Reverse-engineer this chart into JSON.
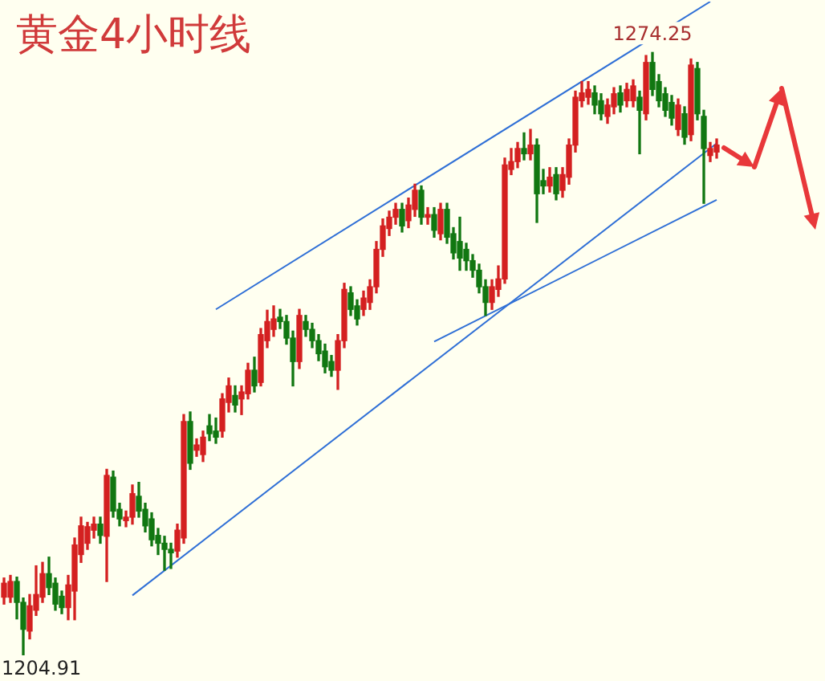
{
  "chart_data": {
    "type": "candlestick",
    "title": "黄金4小时线",
    "annotations": [
      {
        "text": "1274.25",
        "y": 1274.25
      },
      "1204.91"
    ],
    "categories": [
      null,
      null,
      null,
      null,
      null,
      null,
      null,
      null,
      null,
      null,
      null,
      null,
      null,
      null,
      null,
      null,
      null,
      null,
      null,
      null,
      null,
      null,
      null,
      null,
      null,
      null,
      null,
      null,
      null,
      null,
      null,
      null,
      null,
      null,
      null,
      null,
      null,
      null,
      null,
      null,
      null,
      null,
      null,
      null,
      null,
      null,
      null,
      null,
      null,
      null,
      null,
      null,
      null,
      null,
      null,
      null,
      null,
      null,
      null,
      null,
      null,
      null,
      null,
      null,
      null,
      null,
      null,
      null,
      null,
      null,
      null,
      null,
      null,
      null,
      null,
      null,
      null,
      null,
      null,
      null,
      null,
      null,
      null,
      null,
      null,
      null,
      null,
      null,
      null,
      null,
      null,
      null,
      null,
      null,
      null,
      null,
      null,
      null,
      null,
      null,
      null,
      null,
      null,
      null,
      null,
      null,
      null,
      null,
      null,
      null,
      null,
      null
    ],
    "ohlc": [
      [
        1211.6,
        1213.8,
        1210.8,
        1213.2
      ],
      [
        1211.6,
        1214.1,
        1211.0,
        1213.4
      ],
      [
        1213.4,
        1213.9,
        1209.1,
        1211.0
      ],
      [
        1211.0,
        1211.5,
        1204.91,
        1207.9
      ],
      [
        1207.7,
        1211.9,
        1206.8,
        1210.6
      ],
      [
        1210.1,
        1215.2,
        1209.5,
        1211.9
      ],
      [
        1211.6,
        1215.6,
        1211.0,
        1214.3
      ],
      [
        1214.3,
        1216.2,
        1211.9,
        1212.7
      ],
      [
        1213.2,
        1213.8,
        1210.1,
        1210.8
      ],
      [
        1211.7,
        1212.3,
        1209.7,
        1210.4
      ],
      [
        1210.4,
        1214.1,
        1209.0,
        1213.0
      ],
      [
        1212.3,
        1218.4,
        1209.0,
        1217.6
      ],
      [
        1216.5,
        1220.8,
        1215.6,
        1219.8
      ],
      [
        1217.8,
        1220.2,
        1217.1,
        1219.7
      ],
      [
        1219.3,
        1220.8,
        1218.4,
        1220.0
      ],
      [
        1220.0,
        1220.8,
        1217.8,
        1218.7
      ],
      [
        1218.6,
        1226.3,
        1213.4,
        1225.6
      ],
      [
        1225.4,
        1226.1,
        1220.8,
        1221.5
      ],
      [
        1221.7,
        1222.4,
        1219.8,
        1220.6
      ],
      [
        1220.4,
        1221.5,
        1219.7,
        1220.8
      ],
      [
        1220.8,
        1224.5,
        1220.0,
        1223.5
      ],
      [
        1223.2,
        1224.8,
        1220.8,
        1221.5
      ],
      [
        1221.7,
        1222.4,
        1219.1,
        1219.8
      ],
      [
        1220.6,
        1221.3,
        1217.5,
        1218.2
      ],
      [
        1218.7,
        1219.5,
        1216.5,
        1217.8
      ],
      [
        1217.8,
        1218.6,
        1214.7,
        1217.1
      ],
      [
        1217.1,
        1217.8,
        1214.9,
        1216.7
      ],
      [
        1216.9,
        1220.0,
        1216.2,
        1219.3
      ],
      [
        1218.4,
        1232.6,
        1217.8,
        1231.8
      ],
      [
        1231.8,
        1232.9,
        1226.3,
        1227.0
      ],
      [
        1228.5,
        1229.8,
        1227.8,
        1229.1
      ],
      [
        1228.0,
        1230.7,
        1227.2,
        1230.0
      ],
      [
        1231.3,
        1232.6,
        1229.6,
        1230.4
      ],
      [
        1230.7,
        1232.2,
        1229.3,
        1230.0
      ],
      [
        1230.7,
        1235.0,
        1230.0,
        1234.4
      ],
      [
        1234.0,
        1236.8,
        1232.9,
        1235.9
      ],
      [
        1234.8,
        1235.9,
        1232.9,
        1233.7
      ],
      [
        1234.4,
        1235.9,
        1232.6,
        1235.2
      ],
      [
        1235.0,
        1238.5,
        1234.4,
        1237.7
      ],
      [
        1237.7,
        1239.2,
        1235.2,
        1235.9
      ],
      [
        1236.3,
        1242.5,
        1235.9,
        1241.8
      ],
      [
        1241.1,
        1244.6,
        1240.3,
        1243.3
      ],
      [
        1242.4,
        1245.1,
        1241.6,
        1243.6
      ],
      [
        1243.8,
        1244.7,
        1242.5,
        1243.3
      ],
      [
        1243.3,
        1244.0,
        1240.7,
        1241.4
      ],
      [
        1241.4,
        1242.2,
        1235.9,
        1238.7
      ],
      [
        1238.7,
        1244.7,
        1237.9,
        1244.0
      ],
      [
        1243.3,
        1244.0,
        1241.6,
        1242.4
      ],
      [
        1242.4,
        1243.1,
        1240.3,
        1241.1
      ],
      [
        1241.1,
        1241.8,
        1238.8,
        1239.6
      ],
      [
        1239.9,
        1240.7,
        1237.4,
        1238.1
      ],
      [
        1238.7,
        1239.4,
        1237.0,
        1237.7
      ],
      [
        1237.7,
        1241.8,
        1235.5,
        1241.1
      ],
      [
        1241.1,
        1247.7,
        1240.3,
        1247.0
      ],
      [
        1246.6,
        1247.3,
        1244.0,
        1244.7
      ],
      [
        1245.1,
        1245.8,
        1242.9,
        1243.6
      ],
      [
        1244.7,
        1246.8,
        1244.0,
        1246.0
      ],
      [
        1245.5,
        1248.1,
        1244.7,
        1247.3
      ],
      [
        1247.3,
        1252.5,
        1246.6,
        1251.6
      ],
      [
        1251.6,
        1255.1,
        1250.8,
        1254.3
      ],
      [
        1254.0,
        1256.0,
        1253.2,
        1255.3
      ],
      [
        1255.3,
        1256.9,
        1254.5,
        1256.2
      ],
      [
        1256.2,
        1256.9,
        1253.6,
        1254.3
      ],
      [
        1254.9,
        1257.5,
        1254.1,
        1256.7
      ],
      [
        1256.2,
        1259.1,
        1255.4,
        1258.4
      ],
      [
        1258.4,
        1258.9,
        1254.5,
        1255.3
      ],
      [
        1255.3,
        1256.4,
        1254.5,
        1255.6
      ],
      [
        1255.6,
        1256.4,
        1253.0,
        1253.8
      ],
      [
        1253.4,
        1256.9,
        1252.7,
        1256.2
      ],
      [
        1256.2,
        1256.9,
        1252.3,
        1253.0
      ],
      [
        1253.4,
        1254.1,
        1250.5,
        1251.2
      ],
      [
        1252.5,
        1255.3,
        1249.2,
        1250.6
      ],
      [
        1251.6,
        1252.3,
        1249.2,
        1250.3
      ],
      [
        1250.3,
        1251.0,
        1248.4,
        1249.2
      ],
      [
        1249.2,
        1249.9,
        1246.6,
        1247.3
      ],
      [
        1247.3,
        1248.1,
        1244.0,
        1245.5
      ],
      [
        1245.5,
        1248.1,
        1244.7,
        1247.3
      ],
      [
        1247.0,
        1249.7,
        1246.2,
        1248.2
      ],
      [
        1248.2,
        1262.1,
        1247.7,
        1261.3
      ],
      [
        1260.8,
        1263.2,
        1260.2,
        1261.7
      ],
      [
        1261.7,
        1263.9,
        1261.0,
        1263.2
      ],
      [
        1263.2,
        1265.0,
        1261.9,
        1262.6
      ],
      [
        1262.6,
        1265.4,
        1261.9,
        1263.6
      ],
      [
        1263.6,
        1264.3,
        1254.7,
        1258.0
      ],
      [
        1259.5,
        1260.8,
        1258.0,
        1258.9
      ],
      [
        1258.9,
        1261.0,
        1258.2,
        1259.9
      ],
      [
        1260.2,
        1261.0,
        1257.3,
        1258.0
      ],
      [
        1258.4,
        1261.0,
        1257.6,
        1260.2
      ],
      [
        1259.9,
        1264.3,
        1259.1,
        1263.6
      ],
      [
        1263.6,
        1269.8,
        1262.8,
        1269.1
      ],
      [
        1268.7,
        1270.9,
        1268.0,
        1269.6
      ],
      [
        1269.1,
        1270.9,
        1268.3,
        1270.0
      ],
      [
        1269.6,
        1270.4,
        1267.2,
        1268.2
      ],
      [
        1268.7,
        1269.5,
        1266.5,
        1267.2
      ],
      [
        1266.9,
        1268.9,
        1266.1,
        1268.2
      ],
      [
        1268.0,
        1270.2,
        1267.2,
        1269.5
      ],
      [
        1269.6,
        1270.4,
        1267.4,
        1268.2
      ],
      [
        1268.7,
        1270.7,
        1268.0,
        1270.0
      ],
      [
        1268.7,
        1271.1,
        1268.0,
        1270.4
      ],
      [
        1269.1,
        1269.8,
        1262.6,
        1267.6
      ],
      [
        1267.2,
        1273.9,
        1266.5,
        1273.1
      ],
      [
        1273.1,
        1274.25,
        1269.3,
        1270.0
      ],
      [
        1270.9,
        1271.7,
        1268.0,
        1268.7
      ],
      [
        1269.5,
        1270.2,
        1266.9,
        1267.6
      ],
      [
        1268.5,
        1269.3,
        1265.9,
        1266.7
      ],
      [
        1265.4,
        1268.9,
        1264.7,
        1268.2
      ],
      [
        1267.2,
        1268.0,
        1263.7,
        1264.5
      ],
      [
        1264.8,
        1273.5,
        1264.1,
        1272.8
      ],
      [
        1272.4,
        1273.1,
        1266.5,
        1267.2
      ],
      [
        1266.9,
        1267.6,
        1256.9,
        1263.2
      ],
      [
        1262.4,
        1263.9,
        1261.7,
        1263.2
      ],
      [
        1262.8,
        1264.3,
        1262.1,
        1263.6
      ]
    ],
    "colors": [
      "#d42020",
      "#d42020",
      "#117711",
      "#117711",
      "#d42020",
      "#d42020",
      "#d42020",
      "#117711",
      "#117711",
      "#117711",
      "#d42020",
      "#d42020",
      "#d42020",
      "#d42020",
      "#d42020",
      "#117711",
      "#d42020",
      "#117711",
      "#117711",
      "#d42020",
      "#d42020",
      "#117711",
      "#117711",
      "#117711",
      "#117711",
      "#117711",
      "#117711",
      "#d42020",
      "#d42020",
      "#117711",
      "#d42020",
      "#d42020",
      "#117711",
      "#117711",
      "#d42020",
      "#d42020",
      "#117711",
      "#d42020",
      "#d42020",
      "#117711",
      "#d42020",
      "#d42020",
      "#d42020",
      "#117711",
      "#117711",
      "#117711",
      "#d42020",
      "#117711",
      "#117711",
      "#117711",
      "#117711",
      "#117711",
      "#d42020",
      "#d42020",
      "#117711",
      "#117711",
      "#d42020",
      "#d42020",
      "#d42020",
      "#d42020",
      "#d42020",
      "#d42020",
      "#117711",
      "#d42020",
      "#d42020",
      "#117711",
      "#d42020",
      "#117711",
      "#d42020",
      "#117711",
      "#117711",
      "#117711",
      "#117711",
      "#117711",
      "#117711",
      "#117711",
      "#d42020",
      "#d42020",
      "#d42020",
      "#d42020",
      "#d42020",
      "#117711",
      "#d42020",
      "#117711",
      "#117711",
      "#d42020",
      "#117711",
      "#d42020",
      "#d42020",
      "#d42020",
      "#d42020",
      "#d42020",
      "#117711",
      "#117711",
      "#d42020",
      "#d42020",
      "#117711",
      "#d42020",
      "#d42020",
      "#117711",
      "#d42020",
      "#117711",
      "#117711",
      "#117711",
      "#117711",
      "#d42020",
      "#117711",
      "#d42020",
      "#117711",
      "#117711",
      "#d42020",
      "#d42020"
    ],
    "series": [
      {
        "type": "line",
        "values": [
          null,
          null,
          null,
          null,
          null,
          null,
          null,
          null,
          null,
          null,
          null,
          null,
          null,
          null,
          null,
          null,
          null,
          null,
          null,
          null,
          null,
          null,
          null,
          null,
          null,
          null,
          null,
          null,
          null,
          null,
          null,
          null,
          null,
          1244.7,
          null,
          null,
          null,
          null,
          null,
          null,
          null,
          null,
          null,
          null,
          null,
          null,
          null,
          null,
          null,
          null,
          null,
          null,
          null,
          null,
          null,
          null,
          null,
          null,
          null,
          null,
          null,
          null,
          null,
          null,
          null,
          null,
          null,
          null,
          null,
          null,
          null,
          null,
          null,
          null,
          null,
          null,
          null,
          null,
          null,
          null,
          null,
          null,
          null,
          null,
          null,
          null,
          null,
          null,
          null,
          null,
          null,
          null,
          null,
          null,
          null,
          null,
          null,
          null,
          null,
          null,
          null,
          null,
          null,
          null,
          null,
          null,
          null,
          null,
          null,
          null,
          1280.1,
          null
        ],
        "color": "#2f6fd6"
      },
      {
        "type": "line",
        "values": [
          null,
          null,
          null,
          null,
          null,
          null,
          null,
          null,
          null,
          null,
          null,
          null,
          null,
          null,
          null,
          null,
          null,
          null,
          null,
          null,
          1211.8,
          null,
          null,
          null,
          null,
          null,
          null,
          null,
          null,
          null,
          null,
          null,
          null,
          null,
          null,
          null,
          null,
          null,
          null,
          null,
          null,
          null,
          null,
          null,
          null,
          null,
          null,
          null,
          null,
          null,
          null,
          null,
          null,
          null,
          null,
          null,
          null,
          null,
          null,
          null,
          null,
          null,
          null,
          null,
          null,
          null,
          null,
          null,
          null,
          null,
          null,
          null,
          null,
          null,
          null,
          null,
          null,
          null,
          null,
          null,
          null,
          null,
          null,
          null,
          null,
          null,
          null,
          null,
          null,
          null,
          null,
          null,
          null,
          null,
          null,
          null,
          null,
          null,
          null,
          null,
          null,
          null,
          null,
          null,
          null,
          null,
          null,
          null,
          null,
          null,
          null,
          1263.8
        ],
        "color": "#2f6fd6"
      },
      {
        "type": "line",
        "values": [
          null,
          null,
          null,
          null,
          null,
          null,
          null,
          null,
          null,
          null,
          null,
          null,
          null,
          null,
          null,
          null,
          null,
          null,
          null,
          null,
          null,
          null,
          null,
          null,
          null,
          null,
          null,
          null,
          null,
          null,
          null,
          null,
          null,
          null,
          null,
          null,
          null,
          null,
          null,
          null,
          null,
          null,
          null,
          null,
          null,
          null,
          null,
          null,
          null,
          null,
          null,
          null,
          null,
          null,
          null,
          null,
          null,
          null,
          null,
          null,
          null,
          null,
          null,
          null,
          null,
          null,
          null,
          1241.0,
          null,
          null,
          null,
          null,
          null,
          null,
          null,
          null,
          null,
          null,
          null,
          null,
          null,
          null,
          null,
          null,
          null,
          null,
          null,
          null,
          null,
          null,
          null,
          null,
          null,
          null,
          null,
          null,
          null,
          null,
          null,
          null,
          null,
          null,
          null,
          null,
          null,
          null,
          null,
          null,
          null,
          null,
          null,
          1257.3
        ],
        "color": "#2f6fd6"
      }
    ]
  }
}
